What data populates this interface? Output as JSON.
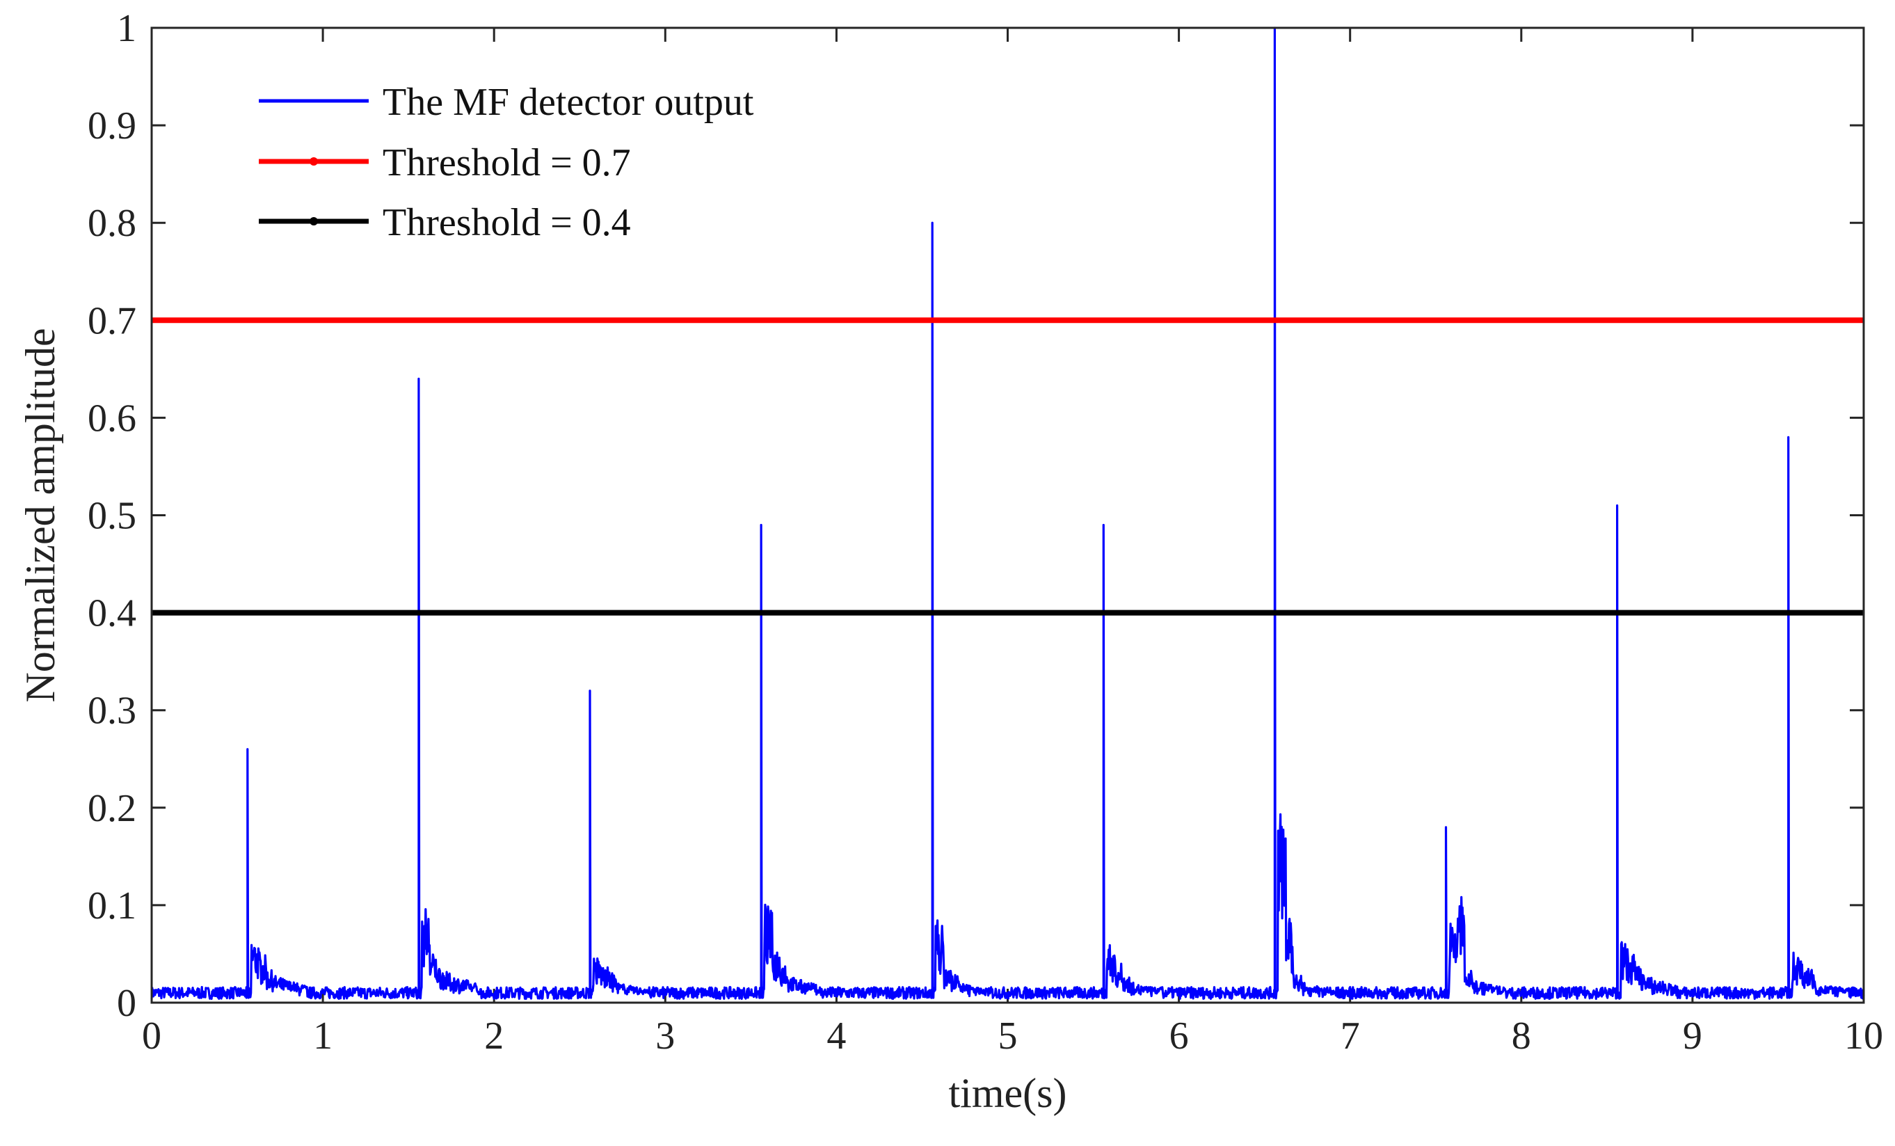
{
  "chart_data": {
    "type": "line",
    "title": "",
    "xlabel": "time(s)",
    "ylabel": "Normalized amplitude",
    "xlim": [
      0,
      10
    ],
    "ylim": [
      0,
      1
    ],
    "xticks": [
      0,
      1,
      2,
      3,
      4,
      5,
      6,
      7,
      8,
      9,
      10
    ],
    "yticks": [
      0,
      0.1,
      0.2,
      0.3,
      0.4,
      0.5,
      0.6,
      0.7,
      0.8,
      0.9,
      1
    ],
    "xtick_labels": [
      "0",
      "1",
      "2",
      "3",
      "4",
      "5",
      "6",
      "7",
      "8",
      "9",
      "10"
    ],
    "ytick_labels": [
      "0",
      "0.1",
      "0.2",
      "0.3",
      "0.4",
      "0.5",
      "0.6",
      "0.7",
      "0.8",
      "0.9",
      "1"
    ],
    "grid": false,
    "legend_position": "top-left",
    "series": [
      {
        "name": "The MF detector output",
        "color": "#0000ff",
        "noise_floor": 0.01,
        "peaks": [
          {
            "t": 0.56,
            "value": 0.26,
            "after": [
              0.07,
              0.06,
              0.045,
              0.04
            ]
          },
          {
            "t": 1.56,
            "value": 0.64,
            "after": [
              0.105,
              0.06,
              0.05,
              0.045
            ]
          },
          {
            "t": 2.56,
            "value": 0.32,
            "after": [
              0.05,
              0.045,
              0.04,
              0.03
            ]
          },
          {
            "t": 3.56,
            "value": 0.49,
            "after": [
              0.105,
              0.07,
              0.06,
              0.04
            ]
          },
          {
            "t": 4.56,
            "value": 0.8,
            "after": [
              0.09,
              0.045,
              0.04,
              0.03
            ]
          },
          {
            "t": 5.56,
            "value": 0.49,
            "after": [
              0.065,
              0.05,
              0.04,
              0.03
            ]
          },
          {
            "t": 6.56,
            "value": 1.0,
            "after": [
              0.235,
              0.105,
              0.04,
              0.03
            ]
          },
          {
            "t": 7.56,
            "value": 0.18,
            "after": [
              0.085,
              0.135,
              0.045,
              0.035
            ]
          },
          {
            "t": 8.56,
            "value": 0.51,
            "after": [
              0.065,
              0.06,
              0.05,
              0.04
            ]
          },
          {
            "t": 9.56,
            "value": 0.58,
            "after": [
              0.055,
              0.05,
              0.045,
              0.03
            ]
          }
        ]
      },
      {
        "name": "Threshold = 0.7",
        "color": "#ff0000",
        "value": 0.7
      },
      {
        "name": "Threshold = 0.4",
        "color": "#000000",
        "value": 0.4
      }
    ]
  }
}
